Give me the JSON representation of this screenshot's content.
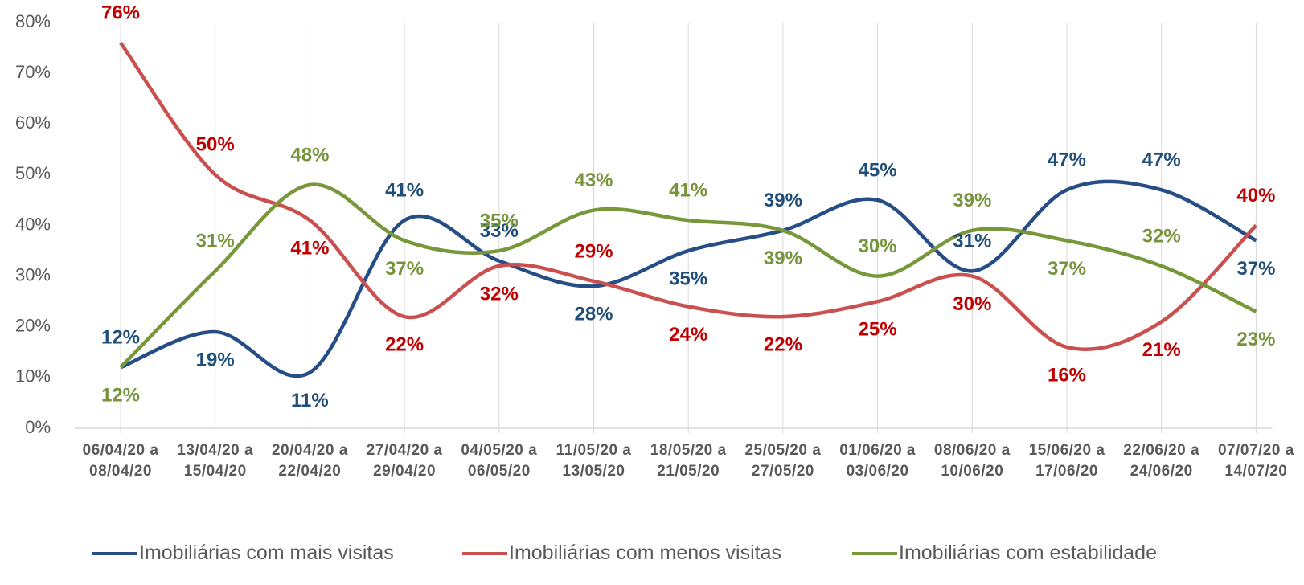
{
  "chart_data": {
    "type": "line",
    "categories": [
      "06/04/20 a 08/04/20",
      "13/04/20 a 15/04/20",
      "20/04/20 a 22/04/20",
      "27/04/20 a 29/04/20",
      "04/05/20 a 06/05/20",
      "11/05/20 a 13/05/20",
      "18/05/20 a 21/05/20",
      "25/05/20 a 27/05/20",
      "01/06/20 a 03/06/20",
      "08/06/20 a 10/06/20",
      "15/06/20 a 17/06/20",
      "22/06/20 a 24/06/20",
      "07/07/20 a 14/07/20"
    ],
    "series": [
      {
        "name": "Imobiliárias com mais visitas",
        "color": "#264d85",
        "label_color": "#1f4e79",
        "values": [
          12,
          19,
          11,
          41,
          33,
          28,
          35,
          39,
          45,
          31,
          47,
          47,
          37
        ],
        "value_labels": [
          "12%",
          "19%",
          "11%",
          "41%",
          "33%",
          "28%",
          "35%",
          "39%",
          "45%",
          "31%",
          "47%",
          "47%",
          "37%"
        ]
      },
      {
        "name": "Imobiliárias com menos visitas",
        "color": "#c9504f",
        "label_color": "#c00000",
        "values": [
          76,
          50,
          41,
          22,
          32,
          29,
          24,
          22,
          25,
          30,
          16,
          21,
          40
        ],
        "value_labels": [
          "76%",
          "50%",
          "41%",
          "22%",
          "32%",
          "29%",
          "24%",
          "22%",
          "25%",
          "30%",
          "16%",
          "21%",
          "40%"
        ]
      },
      {
        "name": "Imobiliárias com estabilidade",
        "color": "#77973a",
        "label_color": "#77933c",
        "values": [
          12,
          31,
          48,
          37,
          35,
          43,
          41,
          39,
          30,
          39,
          37,
          32,
          23
        ],
        "value_labels": [
          "12%",
          "31%",
          "48%",
          "37%",
          "35%",
          "43%",
          "41%",
          "39%",
          "30%",
          "39%",
          "37%",
          "32%",
          "23%"
        ]
      }
    ],
    "ylim": [
      0,
      80
    ],
    "yticks": [
      {
        "value": 0,
        "label": "0%"
      },
      {
        "value": 10,
        "label": "10%"
      },
      {
        "value": 20,
        "label": "20%"
      },
      {
        "value": 30,
        "label": "30%"
      },
      {
        "value": 40,
        "label": "40%"
      },
      {
        "value": 50,
        "label": "50%"
      },
      {
        "value": 60,
        "label": "60%"
      },
      {
        "value": 70,
        "label": "70%"
      },
      {
        "value": 80,
        "label": "80%"
      }
    ],
    "legend": "bottom"
  }
}
